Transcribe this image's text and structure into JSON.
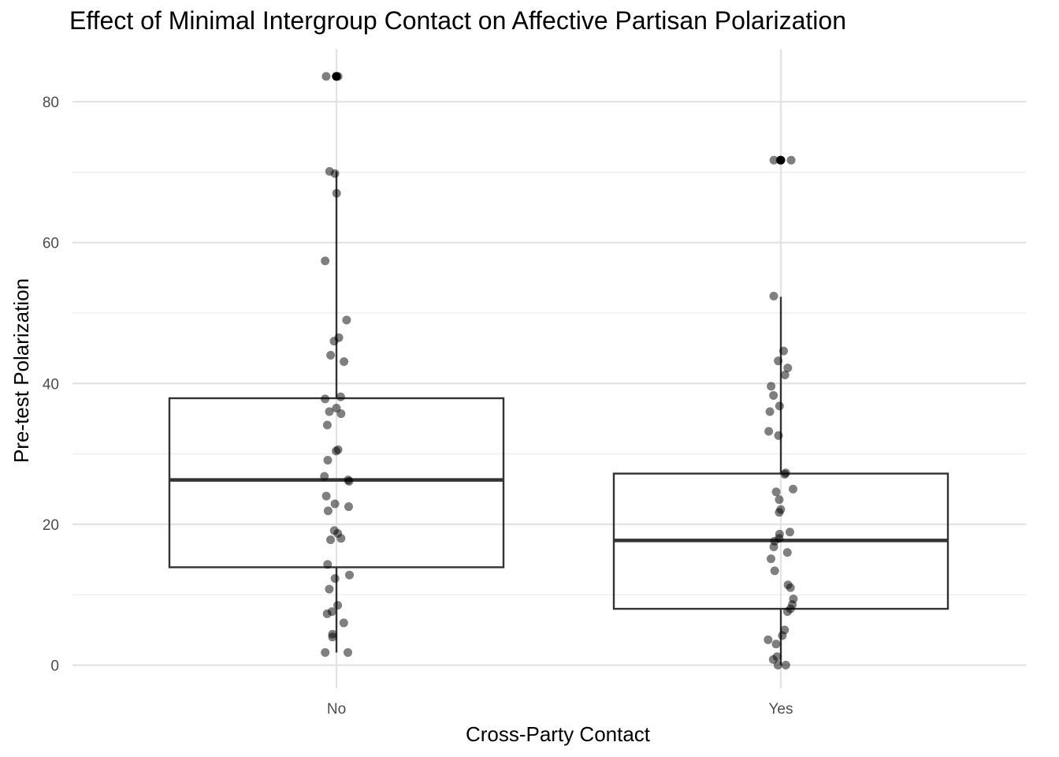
{
  "chart_data": {
    "type": "box",
    "title": "Effect of Minimal Intergroup Contact on Affective Partisan Polarization",
    "xlabel": "Cross-Party Contact",
    "ylabel": "Pre-test Polarization",
    "categories": [
      "No",
      "Yes"
    ],
    "ylim": [
      -3.3,
      87.5
    ],
    "yticks": [
      0,
      20,
      40,
      60,
      80
    ],
    "grid": true,
    "legend": "none",
    "boxes": [
      {
        "category": "No",
        "lower_whisker": 1.8,
        "q1": 13.9,
        "median": 26.3,
        "q3": 37.9,
        "upper_whisker": 70.1,
        "outliers": [
          83.6
        ]
      },
      {
        "category": "Yes",
        "lower_whisker": 0.0,
        "q1": 8.0,
        "median": 17.7,
        "q3": 27.2,
        "upper_whisker": 52.3,
        "outliers": [
          71.7
        ]
      }
    ],
    "points": [
      {
        "category": "No",
        "values": [
          83.6,
          83.6,
          83.6,
          70.1,
          69.8,
          67.0,
          57.4,
          49.0,
          46.5,
          46.0,
          44.0,
          43.1,
          38.1,
          37.8,
          36.5,
          36.0,
          35.7,
          34.1,
          30.6,
          30.4,
          29.1,
          26.8,
          26.3,
          26.1,
          24.0,
          22.9,
          22.5,
          21.9,
          19.1,
          18.7,
          18.0,
          17.8,
          14.3,
          12.8,
          12.3,
          10.8,
          8.5,
          7.6,
          7.3,
          6.0,
          4.4,
          4.0,
          1.8,
          1.8
        ]
      },
      {
        "category": "Yes",
        "values": [
          71.7,
          71.7,
          71.7,
          52.4,
          44.6,
          43.2,
          42.2,
          41.2,
          39.6,
          38.3,
          36.8,
          36.0,
          33.2,
          32.6,
          27.3,
          27.1,
          25.0,
          24.6,
          23.5,
          22.1,
          21.7,
          18.9,
          18.6,
          18.0,
          17.6,
          16.8,
          16.0,
          15.1,
          13.4,
          11.4,
          11.0,
          9.4,
          8.6,
          8.0,
          7.6,
          5.0,
          4.2,
          3.6,
          3.0,
          1.2,
          0.8,
          0.0,
          0.0
        ]
      }
    ]
  }
}
